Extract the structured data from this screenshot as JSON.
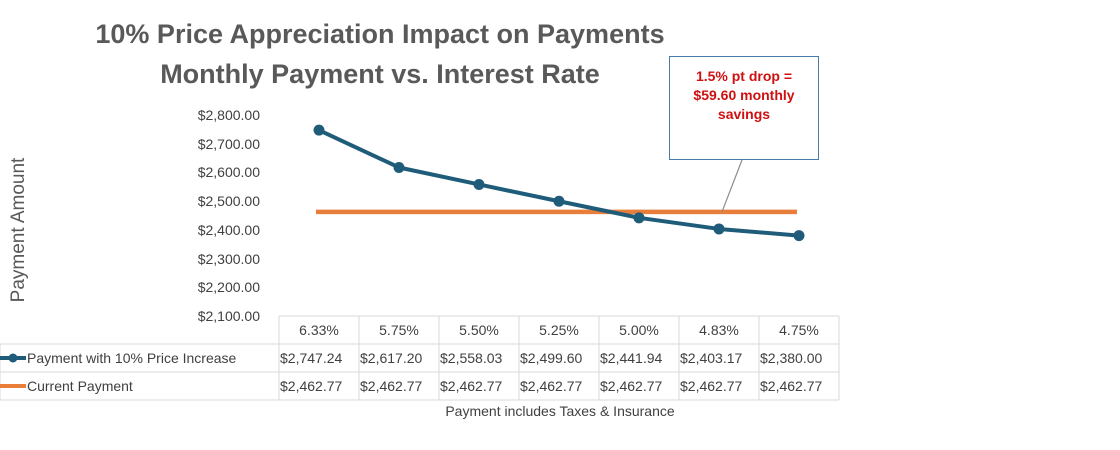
{
  "chart_data": {
    "type": "line",
    "title": "10% Price Appreciation Impact on Payments",
    "subtitle": "Monthly Payment vs. Interest Rate",
    "ylabel": "Payment  Amount",
    "xlabel": "",
    "footnote": "Payment includes Taxes & Insurance",
    "ylim": [
      2100,
      2800
    ],
    "y_ticks": [
      "$2,800.00",
      "$2,700.00",
      "$2,600.00",
      "$2,500.00",
      "$2,400.00",
      "$2,300.00",
      "$2,200.00",
      "$2,100.00"
    ],
    "categories": [
      "6.33%",
      "5.75%",
      "5.50%",
      "5.25%",
      "5.00%",
      "4.83%",
      "4.75%"
    ],
    "series": [
      {
        "name": "Payment with 10% Price Increase",
        "color": "#1f5c7a",
        "values": [
          2747.24,
          2617.2,
          2558.03,
          2499.6,
          2441.94,
          2403.17,
          2380.0
        ],
        "labels": [
          "$2,747.24",
          "$2,617.20",
          "$2,558.03",
          "$2,499.60",
          "$2,441.94",
          "$2,403.17",
          "$2,380.00"
        ]
      },
      {
        "name": "Current Payment",
        "color": "#e97d3a",
        "values": [
          2462.77,
          2462.77,
          2462.77,
          2462.77,
          2462.77,
          2462.77,
          2462.77
        ],
        "labels": [
          "$2,462.77",
          "$2,462.77",
          "$2,462.77",
          "$2,462.77",
          "$2,462.77",
          "$2,462.77",
          "$2,462.77"
        ]
      }
    ],
    "annotation": {
      "lines": [
        "1.5% pt drop =",
        "$59.60 monthly",
        "savings"
      ],
      "target_category_index": 5,
      "target_value": 2462.77
    }
  }
}
